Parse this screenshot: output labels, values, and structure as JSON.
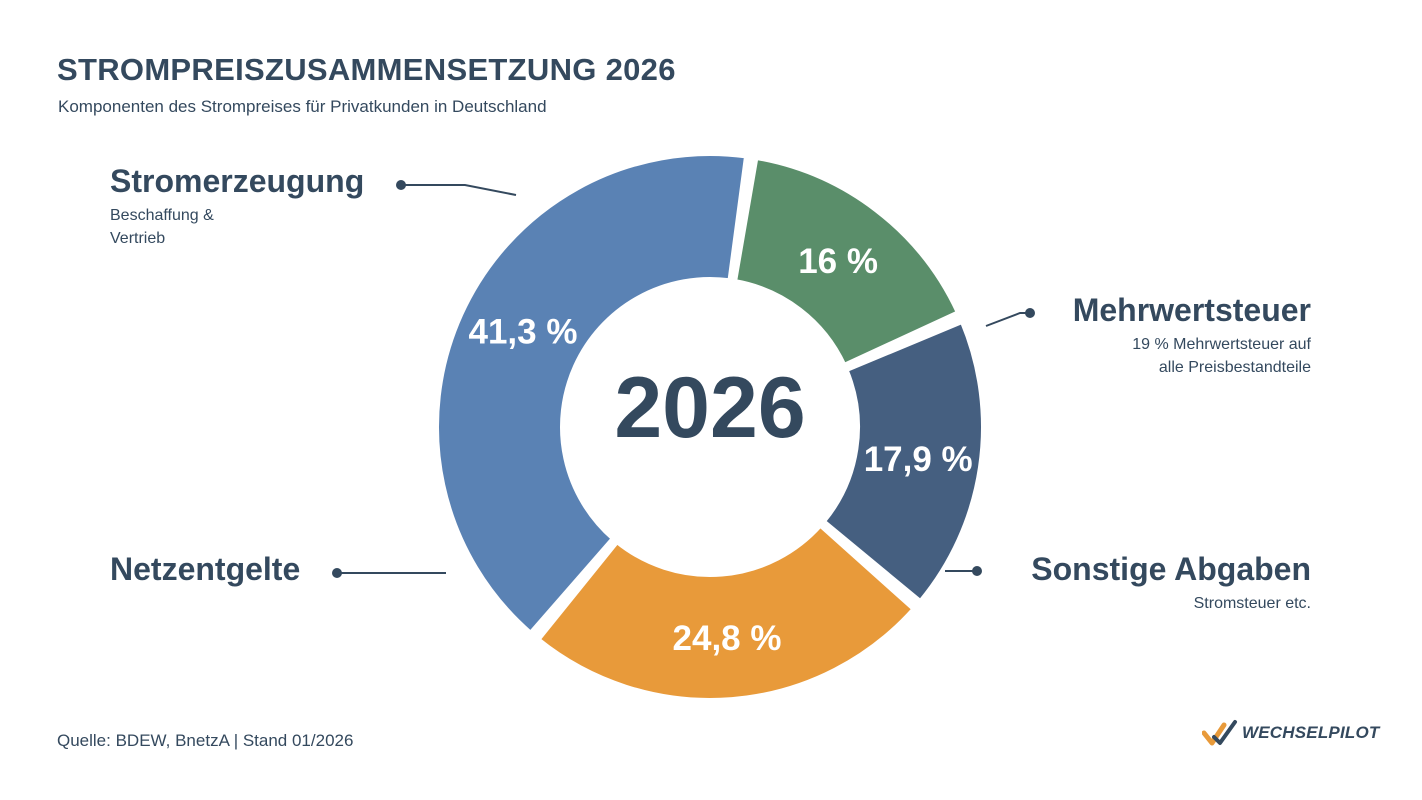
{
  "title": "STROMPREISZUSAMMENSETZUNG 2026",
  "subtitle": "Komponenten des Strompreises für Privatkunden in Deutschland",
  "center_label": "2026",
  "source": "Quelle: BDEW, BnetzA | Stand 01/2026",
  "logo": {
    "text": "WECHSELPILOT",
    "icon": "checkmark-logo-icon"
  },
  "labels": {
    "stromerzeugung": {
      "name": "Stromerzeugung",
      "desc_line1": "Beschaffung &",
      "desc_line2": "Vertrieb"
    },
    "mehrwertsteuer": {
      "name": "Mehrwertsteuer",
      "desc_line1": "19 % Mehrwertsteuer auf",
      "desc_line2": "alle Preisbestandteile"
    },
    "netzentgelte": {
      "name": "Netzentgelte"
    },
    "sonstige": {
      "name": "Sonstige Abgaben",
      "desc_line1": "Stromsteuer etc."
    }
  },
  "chart_data": {
    "type": "pie",
    "donut": true,
    "center_text": "2026",
    "slices": [
      {
        "name": "Stromerzeugung",
        "value": 41.3,
        "label": "41,3 %",
        "color": "#5a82b4"
      },
      {
        "name": "Mehrwertsteuer",
        "value": 16,
        "label": "16 %",
        "color": "#5a8e6a"
      },
      {
        "name": "Sonstige Abgaben",
        "value": 17.9,
        "label": "17,9 %",
        "color": "#455f80"
      },
      {
        "name": "Netzentgelte",
        "value": 24.8,
        "label": "24,8 %",
        "color": "#e89a3a"
      }
    ]
  },
  "colors": {
    "text": "#34495e",
    "leader": "#34495e"
  }
}
